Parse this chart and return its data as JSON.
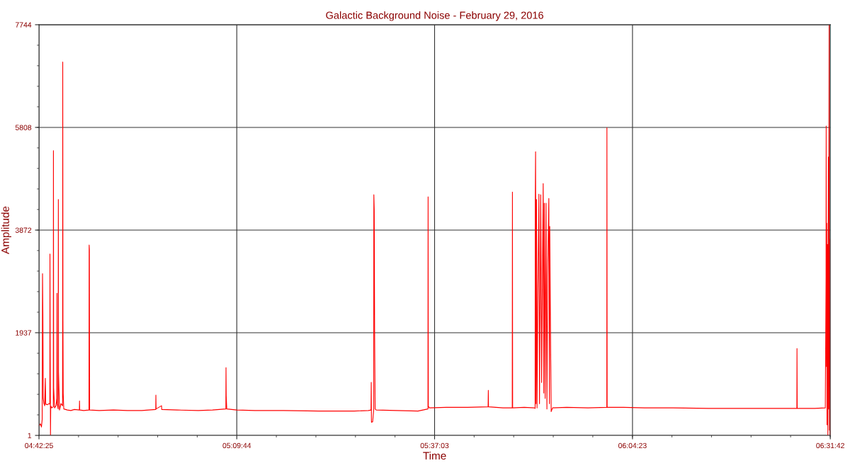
{
  "chart_data": {
    "type": "line",
    "title": "Galactic Background Noise - February 29, 2016",
    "xlabel": "Time",
    "ylabel": "Amplitude",
    "xlim": [
      4.70694,
      6.52833
    ],
    "ylim": [
      1,
      7744
    ],
    "xticks": [
      {
        "value": 4.70694,
        "label": "04:42:25"
      },
      {
        "value": 5.16222,
        "label": "05:09:44"
      },
      {
        "value": 5.6175,
        "label": "05:37:03"
      },
      {
        "value": 6.07306,
        "label": "06:04:23"
      },
      {
        "value": 6.52833,
        "label": "06:31:42"
      }
    ],
    "yticks": [
      1,
      1937,
      3872,
      5808,
      7744
    ],
    "grid": true,
    "series": [
      {
        "color": "#ff0000",
        "x": [
          4.70694,
          4.7102,
          4.7126,
          4.7143,
          4.7151,
          4.7159,
          4.7167,
          4.7184,
          4.72,
          4.7216,
          4.7224,
          4.7265,
          4.7298,
          4.7319,
          4.7322,
          4.7327,
          4.7334,
          4.734,
          4.7363,
          4.7399,
          4.7402,
          4.7407,
          4.7428,
          4.7461,
          4.748,
          4.7484,
          4.7488,
          4.7511,
          4.7515,
          4.7519,
          4.7542,
          4.7575,
          4.7612,
          4.7616,
          4.7621,
          4.7627,
          4.764,
          4.7722,
          4.7803,
          4.7885,
          4.7999,
          4.8002,
          4.8007,
          4.8097,
          4.8221,
          4.8224,
          4.823,
          4.8235,
          4.8455,
          4.8782,
          4.9108,
          4.9434,
          4.9757,
          4.976,
          4.9765,
          4.989,
          4.9895,
          5.0249,
          5.0738,
          5.1064,
          5.1371,
          5.1374,
          5.1379,
          5.1391,
          5.1619,
          5.2043,
          5.2695,
          5.351,
          5.4326,
          5.4652,
          5.4712,
          5.4717,
          5.4722,
          5.475,
          5.4774,
          5.4777,
          5.4786,
          5.4795,
          5.4807,
          5.4831,
          5.5304,
          5.5793,
          5.6023,
          5.6026,
          5.6031,
          5.6054,
          5.6446,
          5.6935,
          5.7407,
          5.7412,
          5.7417,
          5.775,
          5.7963,
          5.7967,
          5.7972,
          5.8239,
          5.8468,
          5.8489,
          5.8492,
          5.85,
          5.851,
          5.8521,
          5.8533,
          5.8549,
          5.8577,
          5.859,
          5.8619,
          5.8639,
          5.8657,
          5.8675,
          5.8688,
          5.8701,
          5.872,
          5.874,
          5.8761,
          5.8777,
          5.8805,
          5.8818,
          5.8826,
          5.8843,
          5.8859,
          5.8891,
          5.9217,
          5.9706,
          6.0139,
          6.0142,
          6.0147,
          6.0522,
          6.1011,
          6.1663,
          6.2479,
          6.3294,
          6.4109,
          6.4514,
          6.4517,
          6.4522,
          6.4925,
          6.5169,
          6.5186,
          6.5189,
          6.5195,
          6.5202,
          6.5208,
          6.5218,
          6.5228,
          6.5238,
          6.5244,
          6.5257,
          6.5264,
          6.5267,
          6.5277,
          6.5283
        ],
        "values": [
          180,
          220,
          160,
          300,
          3050,
          2300,
          700,
          600,
          560,
          1080,
          590,
          580,
          600,
          590,
          3420,
          1800,
          1,
          560,
          520,
          540,
          5370,
          900,
          520,
          560,
          700,
          2680,
          600,
          500,
          4450,
          1200,
          480,
          600,
          560,
          7040,
          2160,
          800,
          500,
          480,
          470,
          490,
          480,
          650,
          480,
          470,
          480,
          3590,
          3500,
          480,
          470,
          480,
          470,
          470,
          490,
          760,
          500,
          560,
          490,
          480,
          470,
          480,
          500,
          1280,
          750,
          500,
          480,
          470,
          470,
          460,
          460,
          470,
          480,
          1000,
          250,
          260,
          480,
          4540,
          4250,
          2000,
          500,
          480,
          470,
          460,
          500,
          4500,
          550,
          520,
          530,
          530,
          540,
          850,
          540,
          520,
          520,
          4590,
          520,
          530,
          520,
          510,
          4400,
          5350,
          600,
          4450,
          520,
          2400,
          4550,
          600,
          4540,
          1000,
          3000,
          4750,
          800,
          4380,
          700,
          4380,
          500,
          3000,
          4470,
          600,
          3940,
          2000,
          450,
          520,
          530,
          520,
          530,
          5800,
          530,
          530,
          520,
          520,
          510,
          510,
          510,
          510,
          1640,
          510,
          510,
          520,
          3000,
          5835,
          1300,
          4000,
          200,
          3600,
          1,
          5250,
          500,
          7740,
          100,
          3700,
          1,
          100
        ]
      }
    ]
  }
}
